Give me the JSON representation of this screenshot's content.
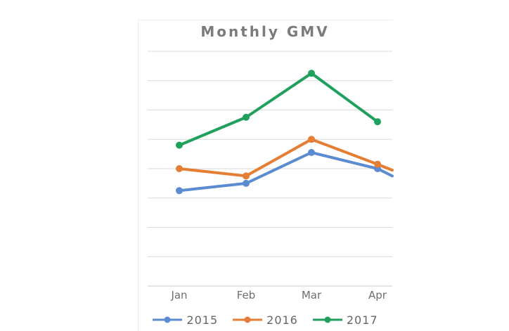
{
  "title": "Monthly GMV",
  "colors": {
    "background": "#FFFFFF",
    "gridline": "#DADADA",
    "axis_line": "#C9C9C9",
    "chart_border": "#EDEDED",
    "title_text": "#7B7B7B",
    "axis_label_text": "#6E6E6E",
    "legend_text": "#666666"
  },
  "chart_data": {
    "type": "line",
    "title": "Monthly GMV",
    "categories": [
      "Jan",
      "Feb",
      "Mar",
      "Apr"
    ],
    "xlabel": "",
    "ylabel": "",
    "y_axis": {
      "tick_labels_visible": false,
      "gridline_count": 9,
      "units": "gridline units (bottom axis = 0, one gridline = 1)",
      "range": [
        0,
        8
      ]
    },
    "legend_position": "bottom",
    "grid": true,
    "markers": "circle",
    "series": [
      {
        "name": "2015",
        "color": "#5B8BD0",
        "values": [
          3.25,
          3.5,
          4.55,
          4.0
        ],
        "clipped_edge_value": 3.75
      },
      {
        "name": "2016",
        "color": "#E57D33",
        "values": [
          4.0,
          3.75,
          5.0,
          4.15
        ],
        "clipped_edge_value": 3.95
      },
      {
        "name": "2017",
        "color": "#1FA15D",
        "values": [
          4.8,
          5.75,
          7.25,
          5.6
        ],
        "clipped_edge_value": null
      }
    ],
    "note": "No y-axis tick labels are shown. The 2015 and 2016 lines continue past the Apr marker and are clipped at the right edge of the plot; the 2017 line ends at Apr."
  }
}
